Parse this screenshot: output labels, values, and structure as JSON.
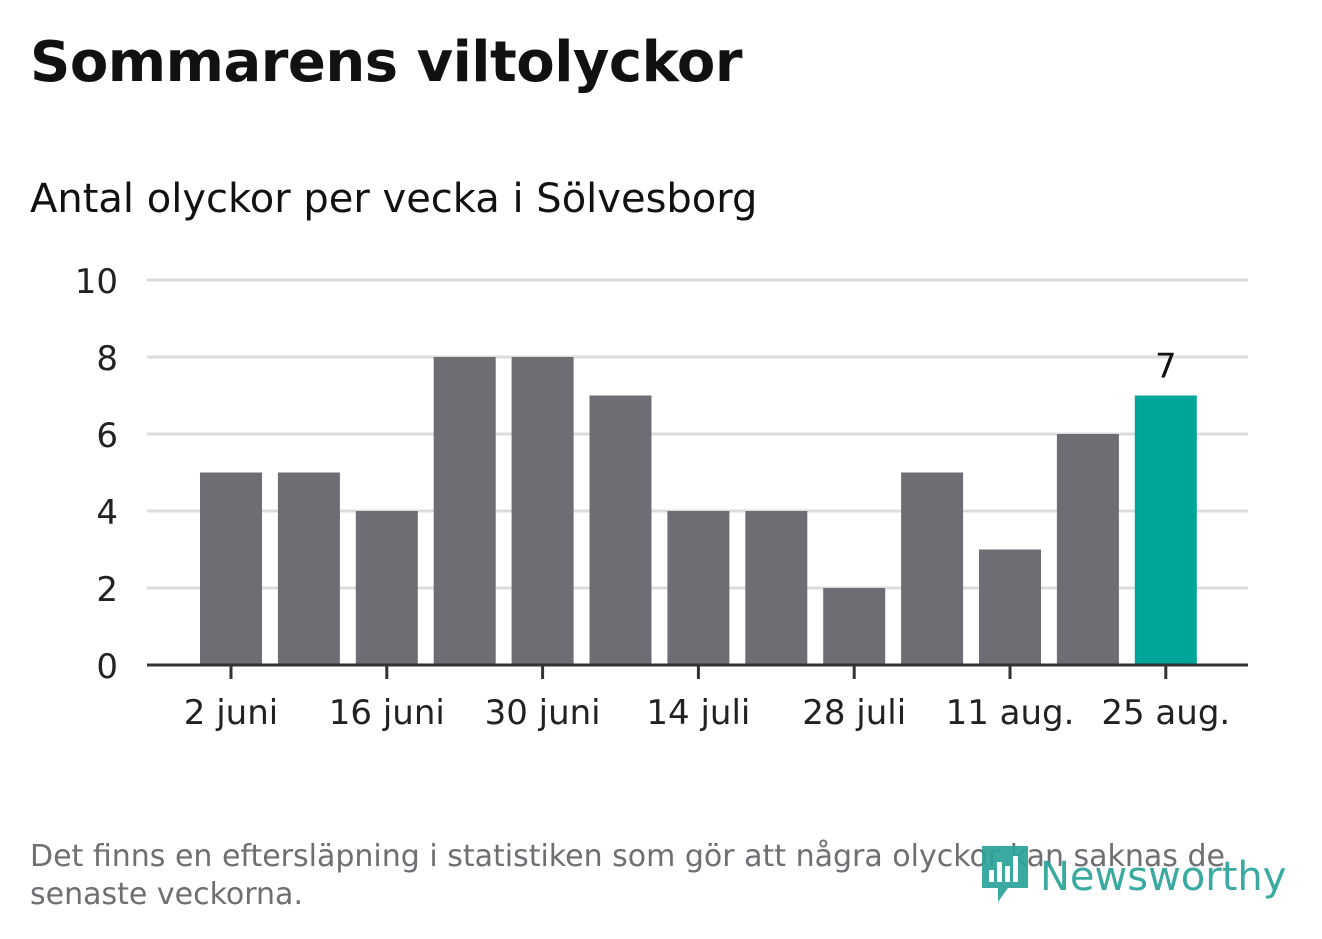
{
  "title": "Sommarens viltolyckor",
  "subtitle": "Antal olyckor per vecka i Sölvesborg",
  "footnote": "Det finns en eftersläpning i statistiken som gör att några olyckor kan saknas de senaste veckorna.",
  "logo": {
    "text": "Newsworthy",
    "icon": "bar-chart-speech-bubble-icon",
    "color": "#2aa39a"
  },
  "colors": {
    "bar": "#6e6d73",
    "highlight": "#00a59a",
    "grid": "#dcdcdc",
    "axis": "#333333",
    "text": "#111111"
  },
  "chart_data": {
    "type": "bar",
    "title": "Sommarens viltolyckor",
    "subtitle": "Antal olyckor per vecka i Sölvesborg",
    "xlabel": "",
    "ylabel": "",
    "ylim": [
      0,
      10
    ],
    "yticks": [
      "0",
      "2",
      "4",
      "6",
      "8",
      "10"
    ],
    "x_tick_labels": [
      "2 juni",
      "16 juni",
      "30 juni",
      "14 juli",
      "28 juli",
      "11 aug.",
      "25 aug."
    ],
    "x_tick_positions": [
      0,
      2,
      4,
      6,
      8,
      10,
      12
    ],
    "values": [
      5,
      5,
      4,
      8,
      8,
      7,
      4,
      4,
      2,
      5,
      3,
      6,
      7
    ],
    "highlight_index": 12,
    "data_labels": [
      {
        "index": 12,
        "text": "7"
      }
    ],
    "grid": true,
    "legend": "none"
  }
}
